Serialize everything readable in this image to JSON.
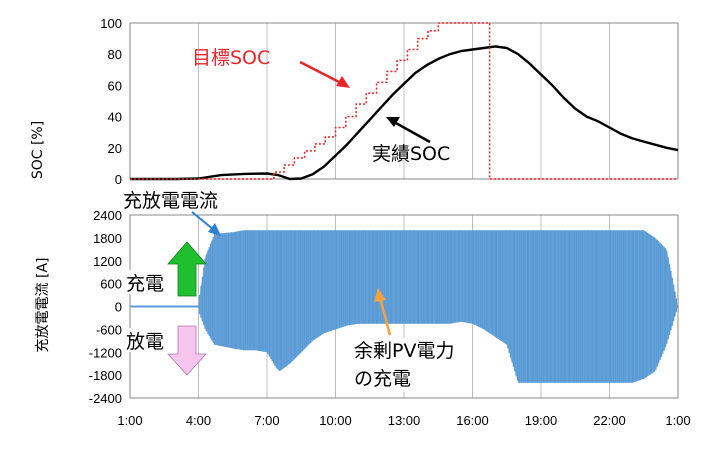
{
  "chart_data": [
    {
      "type": "line",
      "ylabel": "SOC [%]",
      "ylim": [
        0,
        100
      ],
      "yticks": [
        "0",
        "20",
        "40",
        "60",
        "80",
        "100"
      ],
      "xlim": [
        1,
        25
      ],
      "grid": "vertical",
      "series": [
        {
          "name": "実績SOC",
          "style": "solid",
          "color": "#000000",
          "x": [
            1,
            2,
            3,
            4,
            5,
            6,
            7,
            7.5,
            8,
            8.5,
            9,
            9.5,
            10,
            10.5,
            11,
            11.5,
            12,
            12.5,
            13,
            13.5,
            14,
            14.5,
            15,
            15.5,
            16,
            16.5,
            17,
            17.5,
            18,
            18.5,
            19,
            19.5,
            20,
            20.5,
            21,
            21.5,
            22,
            22.5,
            23,
            23.5,
            24,
            24.5,
            25
          ],
          "y": [
            0,
            0,
            0,
            0.3,
            2.5,
            3.3,
            3.5,
            2.5,
            0,
            0.3,
            3,
            8,
            15,
            22,
            30,
            38,
            46,
            54,
            61,
            68,
            73,
            77,
            80,
            82,
            83,
            84,
            85,
            84,
            80,
            74,
            67,
            60,
            52,
            45,
            40,
            37,
            33,
            29,
            26,
            24,
            22,
            20,
            18.5
          ]
        },
        {
          "name": "目標SOC",
          "style": "dotted",
          "color": "#e8262a",
          "x": [
            1,
            7.3,
            7.3,
            7.75,
            7.75,
            8.2,
            8.2,
            8.65,
            8.65,
            9.1,
            9.1,
            9.55,
            9.55,
            10,
            10,
            10.45,
            10.45,
            10.9,
            10.9,
            11.35,
            11.35,
            11.8,
            11.8,
            12.25,
            12.25,
            12.7,
            12.7,
            13.15,
            13.15,
            13.6,
            13.6,
            14.05,
            14.05,
            14.5,
            14.5,
            16.75,
            16.75,
            25
          ],
          "y": [
            0,
            0,
            4.5,
            4.5,
            9,
            9,
            13.5,
            13.5,
            18,
            18,
            22.5,
            22.5,
            27,
            27,
            33,
            33,
            40,
            40,
            48,
            48,
            55,
            55,
            62,
            62,
            69,
            69,
            76,
            76,
            83,
            83,
            90,
            90,
            95,
            95,
            100,
            100,
            0,
            0
          ]
        }
      ]
    },
    {
      "type": "area",
      "ylabel": "充放電電流 [A]",
      "ylim": [
        -2400,
        2400
      ],
      "yticks": [
        "-2400",
        "-1800",
        "-1200",
        "-600",
        "0",
        "600",
        "1200",
        "1800",
        "2400"
      ],
      "xticks": [
        "1:00",
        "4:00",
        "7:00",
        "10:00",
        "13:00",
        "16:00",
        "19:00",
        "22:00",
        "1:00"
      ],
      "x_tick_hours": [
        1,
        4,
        7,
        10,
        13,
        16,
        19,
        22,
        25
      ],
      "xlim": [
        1,
        25
      ],
      "grid": "vertical",
      "series": [
        {
          "name": "充放電電流",
          "color": "#5b9bd5",
          "envelope_x": [
            1,
            4,
            4.05,
            4.3,
            4.7,
            5.5,
            6.0,
            6.5,
            7.0,
            7.4,
            7.55,
            8.0,
            8.5,
            9.0,
            9.5,
            10.0,
            10.5,
            11.0,
            11.5,
            12.0,
            12.5,
            13.0,
            13.5,
            14.0,
            14.5,
            15.0,
            15.5,
            16.0,
            16.5,
            17.0,
            17.5,
            18.0,
            18.5,
            19.0,
            19.5,
            20.0,
            20.5,
            21.0,
            21.5,
            22.0,
            22.5,
            23.0,
            23.5,
            24.0,
            24.5,
            25
          ],
          "upper": [
            0,
            0,
            300,
            1300,
            1900,
            1950,
            2000,
            2000,
            2000,
            2000,
            2000,
            2000,
            2000,
            2000,
            2000,
            2000,
            2000,
            2000,
            2000,
            2000,
            2000,
            2000,
            2000,
            2000,
            2000,
            2000,
            2000,
            2000,
            2000,
            2000,
            2000,
            2000,
            2000,
            2000,
            2000,
            2000,
            2000,
            2000,
            2000,
            2000,
            2000,
            2000,
            2000,
            1800,
            1500,
            0
          ],
          "lower": [
            0,
            0,
            -200,
            -600,
            -1000,
            -1100,
            -1150,
            -1150,
            -1200,
            -1600,
            -1700,
            -1500,
            -1200,
            -900,
            -700,
            -600,
            -500,
            -450,
            -450,
            -450,
            -450,
            -450,
            -450,
            -450,
            -450,
            -450,
            -400,
            -450,
            -600,
            -800,
            -1000,
            -2000,
            -2000,
            -2000,
            -2000,
            -2000,
            -2000,
            -2000,
            -2000,
            -2000,
            -2000,
            -2000,
            -1900,
            -1700,
            -1000,
            0
          ],
          "baseline_upper": [
            0,
            0,
            0,
            0,
            0,
            0,
            0,
            0,
            0,
            0,
            0,
            0,
            0,
            0,
            0,
            0,
            0,
            0,
            0,
            0,
            0,
            0,
            0,
            0,
            0,
            0,
            0,
            0,
            0,
            0,
            0,
            0,
            0,
            0,
            0,
            0,
            0,
            0,
            0,
            0,
            0,
            0,
            0,
            0,
            0,
            0
          ]
        }
      ]
    }
  ],
  "annotations": {
    "target_soc": "目標SOC",
    "actual_soc": "実績SOC",
    "current_label": "充放電電流",
    "charge": "充電",
    "discharge": "放電",
    "surplus_line1": "余剰PV電力",
    "surplus_line2": "の充電"
  },
  "colors": {
    "series_blue": "#5b9bd5",
    "target_red": "#e8262a",
    "charge_arrow": "#1fbf2f",
    "discharge_arrow": "#f6c6ee",
    "surplus_arrow": "#f7a23b",
    "current_arrow": "#2f7fd0"
  }
}
